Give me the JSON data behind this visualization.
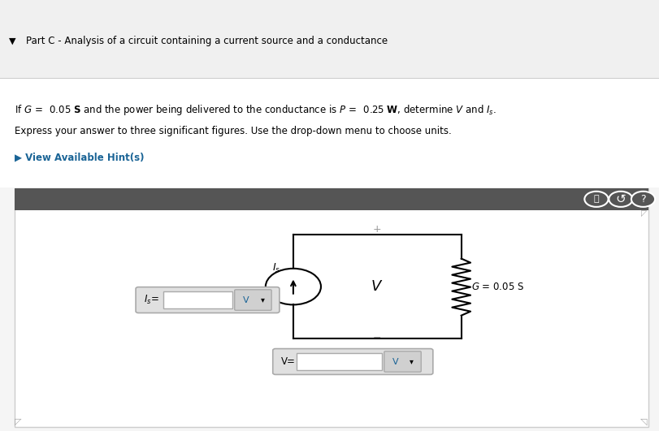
{
  "title_text": "Part C - Analysis of a circuit containing a current source and a conductance",
  "problem_line1": "If $G\\, =\\,$ 0.05 $\\mathbf{S}$ and the power being delivered to the conductance is $P\\, =\\,$ 0.25 $\\mathbf{W}$, determine $V$ and $I_s$.",
  "problem_line2": "Express your answer to three significant figures. Use the drop-down menu to choose units.",
  "hint_text": "▶ View Available Hint(s)",
  "bg_color": "#f5f5f5",
  "header_bg": "#f0f0f0",
  "white_bg": "#ffffff",
  "dark_bar_color": "#555555",
  "panel_border": "#cccccc",
  "wire_color": "#000000",
  "G_label": "$G$ = 0.05 S",
  "input_bg": "#e0e0e0",
  "input_border": "#aaaaaa",
  "unit_color": "#1a6496"
}
